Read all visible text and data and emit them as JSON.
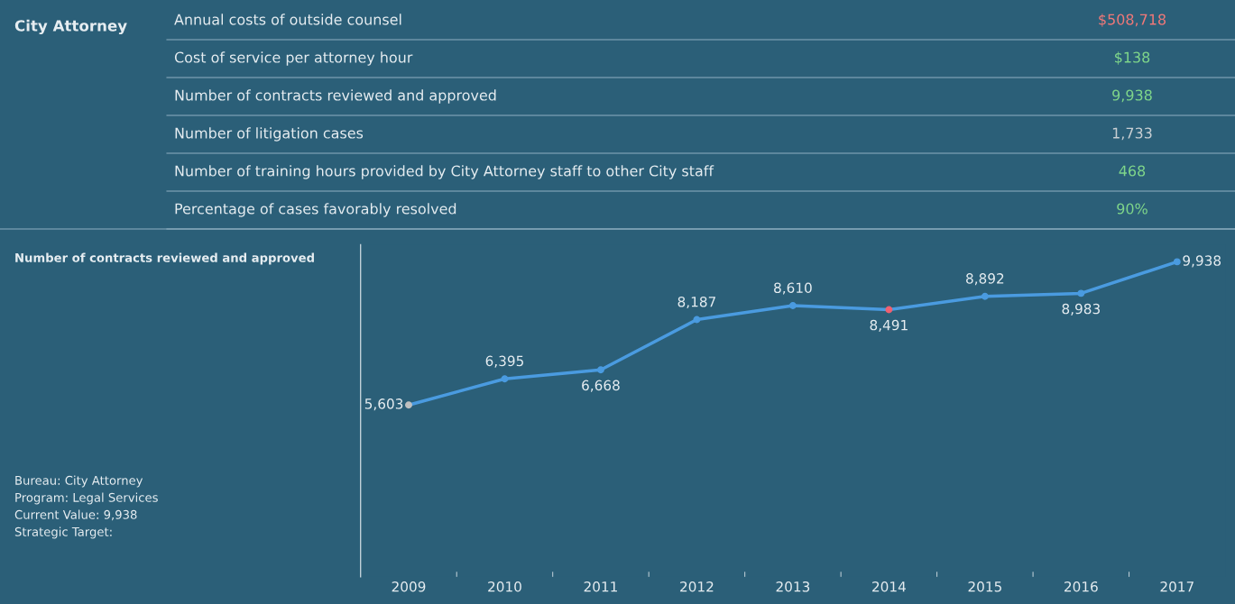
{
  "chart_data": [
    {
      "type": "other",
      "title": "City Attorney",
      "categories": [
        "Annual costs of outside counsel",
        "Cost of service per attorney hour",
        "Number of contracts reviewed and approved",
        "Number of litigation cases",
        "Number of training hours provided by City Attorney staff to other City staff",
        "Percentage of cases favorably resolved"
      ],
      "value_labels": [
        "$508,718",
        "$138",
        "9,938",
        "1,733",
        "468",
        "90%"
      ],
      "colors": [
        "#f07878",
        "#7fd68a",
        "#7fd68a",
        "#c8ced2",
        "#7fd68a",
        "#7fd68a"
      ]
    },
    {
      "type": "line",
      "title": "Number of contracts reviewed and approved",
      "annotations": [
        "Bureau: City Attorney",
        "Program: Legal Services",
        "Current Value: 9,938",
        "Strategic Target:"
      ],
      "categories": [
        "2009",
        "2010",
        "2011",
        "2012",
        "2013",
        "2014",
        "2015",
        "2016",
        "2017"
      ],
      "series": [
        {
          "color": "#4a9be0",
          "values": [
            5603,
            6395,
            6668,
            8187,
            8610,
            8491,
            8892,
            8983,
            9938
          ],
          "value_labels": [
            "5,603",
            "6,395",
            "6,668",
            "8,187",
            "8,610",
            "8,491",
            "8,892",
            "8,983",
            "9,938"
          ],
          "colors": [
            "#c0c0c0",
            "#4a9be0",
            "#4a9be0",
            "#4a9be0",
            "#4a9be0",
            "#f06070",
            "#4a9be0",
            "#4a9be0",
            "#4a9be0"
          ]
        }
      ],
      "data_labels": true,
      "marker": "circle",
      "grid": false,
      "legend": false,
      "tick_labels": "x"
    }
  ]
}
